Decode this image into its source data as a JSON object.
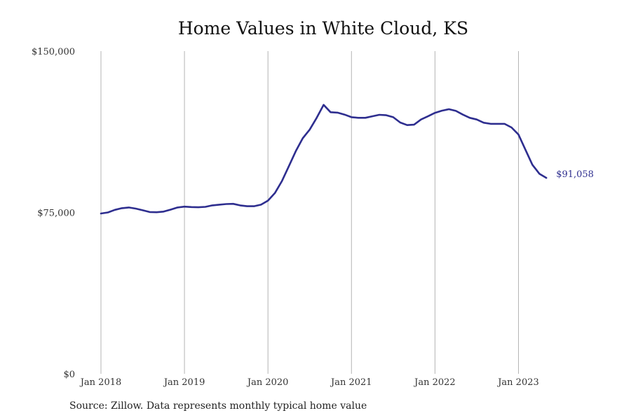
{
  "chart_data": {
    "type": "line",
    "title": "Home Values in White Cloud, KS",
    "source": "Source: Zillow. Data represents monthly typical home value",
    "ylim": [
      0,
      150000
    ],
    "y_ticks": [
      {
        "value": 0,
        "label": "$0"
      },
      {
        "value": 75000,
        "label": "$75,000"
      },
      {
        "value": 150000,
        "label": "$150,000"
      }
    ],
    "x_ticks": [
      {
        "value": "2018-01",
        "label": "Jan 2018"
      },
      {
        "value": "2019-01",
        "label": "Jan 2019"
      },
      {
        "value": "2020-01",
        "label": "Jan 2020"
      },
      {
        "value": "2021-01",
        "label": "Jan 2021"
      },
      {
        "value": "2022-01",
        "label": "Jan 2022"
      },
      {
        "value": "2023-01",
        "label": "Jan 2023"
      }
    ],
    "grid": "vertical",
    "line_color": "#2e2e8f",
    "end_label": "$91,058",
    "series": [
      {
        "x": [
          "2018-01",
          "2018-02",
          "2018-03",
          "2018-04",
          "2018-05",
          "2018-06",
          "2018-07",
          "2018-08",
          "2018-09",
          "2018-10",
          "2018-11",
          "2018-12",
          "2019-01",
          "2019-02",
          "2019-03",
          "2019-04",
          "2019-05",
          "2019-06",
          "2019-07",
          "2019-08",
          "2019-09",
          "2019-10",
          "2019-11",
          "2019-12",
          "2020-01",
          "2020-02",
          "2020-03",
          "2020-04",
          "2020-05",
          "2020-06",
          "2020-07",
          "2020-08",
          "2020-09",
          "2020-10",
          "2020-11",
          "2020-12",
          "2021-01",
          "2021-02",
          "2021-03",
          "2021-04",
          "2021-05",
          "2021-06",
          "2021-07",
          "2021-08",
          "2021-09",
          "2021-10",
          "2021-11",
          "2021-12",
          "2022-01",
          "2022-02",
          "2022-03",
          "2022-04",
          "2022-05",
          "2022-06",
          "2022-07",
          "2022-08",
          "2022-09",
          "2022-10",
          "2022-11",
          "2022-12",
          "2023-01",
          "2023-02",
          "2023-03",
          "2023-04",
          "2023-05"
        ],
        "values": [
          74500,
          75000,
          76200,
          77000,
          77300,
          76800,
          76000,
          75200,
          75100,
          75400,
          76300,
          77300,
          77700,
          77500,
          77400,
          77600,
          78300,
          78600,
          78900,
          79000,
          78300,
          77900,
          77900,
          78600,
          80500,
          84000,
          89500,
          96500,
          103500,
          109500,
          113500,
          119000,
          125000,
          121600,
          121400,
          120500,
          119300,
          119000,
          119000,
          119700,
          120400,
          120200,
          119300,
          116800,
          115600,
          115800,
          118200,
          119700,
          121300,
          122300,
          123000,
          122200,
          120500,
          119000,
          118200,
          116700,
          116200,
          116200,
          116200,
          114500,
          111200,
          104200,
          97200,
          93000,
          91058
        ]
      }
    ]
  }
}
